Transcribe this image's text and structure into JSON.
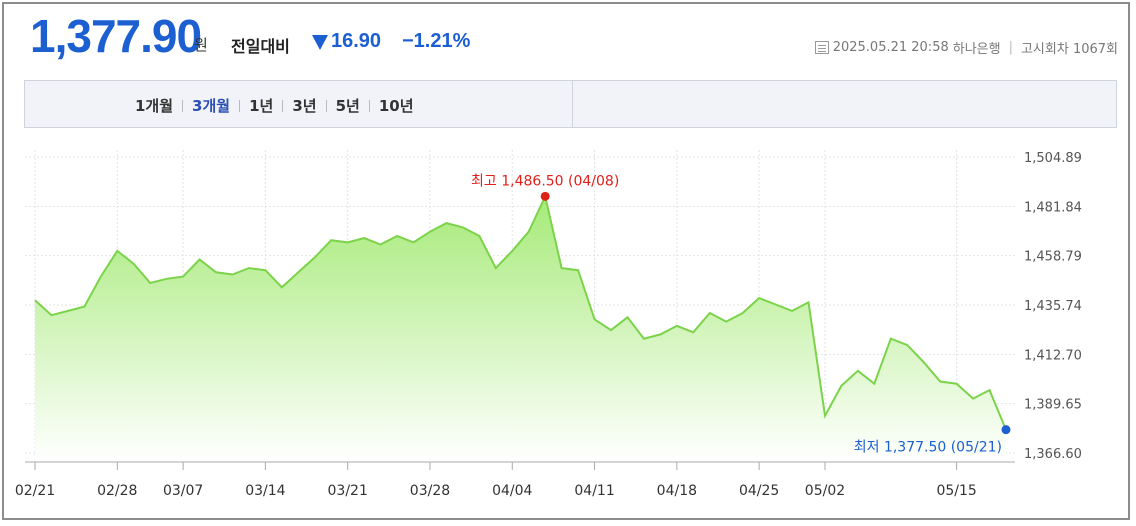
{
  "header": {
    "price": "1,377.90",
    "unit": "원",
    "compare_label": "전일대비",
    "change": "16.90",
    "change_pct": "−1.21%",
    "datetime": "2025.05.21 20:58",
    "bank": "하나은행",
    "round": "고시회차 1067회"
  },
  "tabs": [
    {
      "label": "1개월",
      "active": false
    },
    {
      "label": "3개월",
      "active": true
    },
    {
      "label": "1년",
      "active": false
    },
    {
      "label": "3년",
      "active": false
    },
    {
      "label": "5년",
      "active": false
    },
    {
      "label": "10년",
      "active": false
    }
  ],
  "colors": {
    "accent": "#1c5fd1",
    "line": "#7bd34a",
    "max": "#e0201b",
    "min": "#1c5fd1"
  },
  "chart_data": {
    "type": "area",
    "title": "",
    "xlabel": "",
    "ylabel": "",
    "ylim": [
      1366.6,
      1504.89
    ],
    "yticks": [
      "1,504.89",
      "1,481.84",
      "1,458.79",
      "1,435.74",
      "1,412.70",
      "1,389.65",
      "1,366.60"
    ],
    "ytick_values": [
      1504.89,
      1481.84,
      1458.79,
      1435.74,
      1412.7,
      1389.65,
      1366.6
    ],
    "xticks": [
      "02/21",
      "02/28",
      "03/07",
      "03/14",
      "03/21",
      "03/28",
      "04/04",
      "04/11",
      "04/18",
      "04/25",
      "05/02",
      "05/15"
    ],
    "xtick_index": [
      0,
      5,
      9,
      14,
      19,
      24,
      29,
      34,
      39,
      44,
      48,
      56
    ],
    "values": [
      1438,
      1431,
      1433,
      1435,
      1449,
      1461,
      1455,
      1446,
      1448,
      1449,
      1457,
      1451,
      1450,
      1453,
      1452,
      1444,
      1451,
      1458,
      1466,
      1465,
      1467,
      1464,
      1468,
      1465,
      1470,
      1474,
      1472,
      1468,
      1453,
      1461,
      1470,
      1486.5,
      1453,
      1452,
      1429,
      1424,
      1430,
      1420,
      1422,
      1426,
      1423,
      1432,
      1428,
      1432,
      1439,
      1436,
      1433,
      1437,
      1384,
      1398,
      1405,
      1399,
      1420,
      1417,
      1409,
      1400,
      1399,
      1392,
      1396,
      1377.5
    ],
    "max_label": "최고 1,486.50 (04/08)",
    "min_label": "최저 1,377.50 (05/21)",
    "max_index": 31,
    "min_index": 59,
    "grid": true
  }
}
